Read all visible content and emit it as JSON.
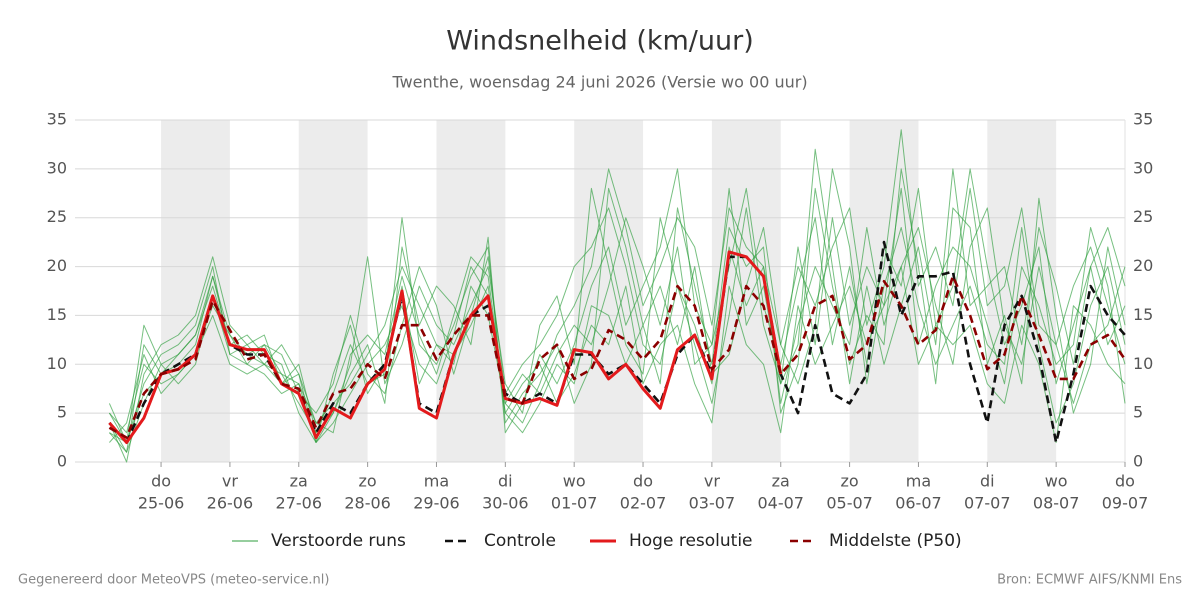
{
  "chart_data": {
    "type": "line",
    "title": "Windsnelheid (km/uur)",
    "subtitle": "Twenthe, woensdag 24 juni 2026 (Versie wo 00 uur)",
    "footer_left": "Gegenereerd door MeteoVPS (meteo-service.nl)",
    "footer_right": "Bron: ECMWF AIFS/KNMI Ens",
    "ylim": [
      0,
      35
    ],
    "yticks": [
      0,
      5,
      10,
      15,
      20,
      25,
      30,
      35
    ],
    "grid": true,
    "right_axis": true,
    "xlim": [
      "2026-06-23T18:00",
      "2026-07-09T00:00"
    ],
    "shade_alternate_days": true,
    "xticks": [
      {
        "value": "2026-06-25T00:00",
        "day": "do",
        "date": "25-06"
      },
      {
        "value": "2026-06-26T00:00",
        "day": "vr",
        "date": "26-06"
      },
      {
        "value": "2026-06-27T00:00",
        "day": "za",
        "date": "27-06"
      },
      {
        "value": "2026-06-28T00:00",
        "day": "zo",
        "date": "28-06"
      },
      {
        "value": "2026-06-29T00:00",
        "day": "ma",
        "date": "29-06"
      },
      {
        "value": "2026-06-30T00:00",
        "day": "di",
        "date": "30-06"
      },
      {
        "value": "2026-07-01T00:00",
        "day": "wo",
        "date": "01-07"
      },
      {
        "value": "2026-07-02T00:00",
        "day": "do",
        "date": "02-07"
      },
      {
        "value": "2026-07-03T00:00",
        "day": "vr",
        "date": "03-07"
      },
      {
        "value": "2026-07-04T00:00",
        "day": "za",
        "date": "04-07"
      },
      {
        "value": "2026-07-05T00:00",
        "day": "zo",
        "date": "05-07"
      },
      {
        "value": "2026-07-06T00:00",
        "day": "ma",
        "date": "06-07"
      },
      {
        "value": "2026-07-07T00:00",
        "day": "di",
        "date": "07-07"
      },
      {
        "value": "2026-07-08T00:00",
        "day": "wo",
        "date": "08-07"
      },
      {
        "value": "2026-07-09T00:00",
        "day": "do",
        "date": "09-07"
      }
    ],
    "x": [
      "2026-06-24T06:00",
      "2026-06-24T12:00",
      "2026-06-24T18:00",
      "2026-06-25T00:00",
      "2026-06-25T06:00",
      "2026-06-25T12:00",
      "2026-06-25T18:00",
      "2026-06-26T00:00",
      "2026-06-26T06:00",
      "2026-06-26T12:00",
      "2026-06-26T18:00",
      "2026-06-27T00:00",
      "2026-06-27T06:00",
      "2026-06-27T12:00",
      "2026-06-27T18:00",
      "2026-06-28T00:00",
      "2026-06-28T06:00",
      "2026-06-28T12:00",
      "2026-06-28T18:00",
      "2026-06-29T00:00",
      "2026-06-29T06:00",
      "2026-06-29T12:00",
      "2026-06-29T18:00",
      "2026-06-30T00:00",
      "2026-06-30T06:00",
      "2026-06-30T12:00",
      "2026-06-30T18:00",
      "2026-07-01T00:00",
      "2026-07-01T06:00",
      "2026-07-01T12:00",
      "2026-07-01T18:00",
      "2026-07-02T00:00",
      "2026-07-02T06:00",
      "2026-07-02T12:00",
      "2026-07-02T18:00",
      "2026-07-03T00:00",
      "2026-07-03T06:00",
      "2026-07-03T12:00",
      "2026-07-03T18:00",
      "2026-07-04T00:00",
      "2026-07-04T06:00",
      "2026-07-04T12:00",
      "2026-07-04T18:00",
      "2026-07-05T00:00",
      "2026-07-05T06:00",
      "2026-07-05T12:00",
      "2026-07-05T18:00",
      "2026-07-06T00:00",
      "2026-07-06T06:00",
      "2026-07-06T12:00",
      "2026-07-06T18:00",
      "2026-07-07T00:00",
      "2026-07-07T06:00",
      "2026-07-07T12:00",
      "2026-07-07T18:00",
      "2026-07-08T00:00",
      "2026-07-08T06:00",
      "2026-07-08T12:00",
      "2026-07-08T18:00",
      "2026-07-09T00:00"
    ],
    "series": [
      {
        "name": "Verstoorde runs",
        "color": "#2e9e3e",
        "style": "thin",
        "runs": [
          [
            4,
            1,
            12,
            9,
            10,
            12,
            19,
            12,
            11,
            12,
            9,
            6,
            3,
            7,
            12,
            8,
            9,
            25,
            12,
            10,
            14,
            19,
            22,
            4,
            7,
            9,
            12,
            6,
            10,
            28,
            22,
            14,
            8,
            26,
            18,
            10,
            24,
            20,
            22,
            5,
            10,
            28,
            18,
            10,
            15,
            12,
            30,
            20,
            8,
            26,
            24,
            10,
            15,
            8,
            27,
            15,
            5,
            10,
            22,
            14
          ],
          [
            3,
            2,
            8,
            11,
            12,
            14,
            20,
            11,
            12,
            10,
            8,
            9,
            2,
            5,
            10,
            21,
            8,
            12,
            18,
            14,
            12,
            16,
            20,
            8,
            5,
            14,
            17,
            10,
            28,
            20,
            12,
            9,
            25,
            18,
            12,
            6,
            15,
            26,
            14,
            8,
            22,
            12,
            25,
            14,
            20,
            16,
            28,
            12,
            18,
            22,
            20,
            14,
            8,
            20,
            16,
            10,
            12,
            24,
            18,
            6
          ],
          [
            5,
            3,
            10,
            8,
            9,
            11,
            16,
            13,
            10,
            9,
            7,
            8,
            4,
            6,
            8,
            11,
            14,
            20,
            16,
            12,
            10,
            18,
            15,
            6,
            9,
            7,
            11,
            14,
            12,
            18,
            25,
            20,
            14,
            22,
            10,
            12,
            20,
            28,
            16,
            10,
            18,
            25,
            12,
            20,
            10,
            22,
            18,
            28,
            14,
            18,
            30,
            20,
            12,
            16,
            22,
            8,
            14,
            20,
            12,
            16
          ],
          [
            3,
            1,
            6,
            10,
            11,
            13,
            18,
            12,
            13,
            11,
            10,
            5,
            2,
            4,
            7,
            10,
            12,
            16,
            10,
            8,
            13,
            20,
            17,
            5,
            3,
            6,
            10,
            8,
            16,
            15,
            10,
            14,
            18,
            12,
            20,
            9,
            11,
            18,
            24,
            12,
            8,
            14,
            30,
            22,
            8,
            18,
            24,
            16,
            10,
            14,
            18,
            12,
            10,
            24,
            12,
            4,
            8,
            16,
            20,
            12
          ],
          [
            6,
            2,
            14,
            10,
            8,
            10,
            17,
            11,
            10,
            12,
            11,
            7,
            5,
            8,
            15,
            9,
            7,
            14,
            20,
            16,
            9,
            15,
            21,
            7,
            10,
            12,
            15,
            20,
            22,
            26,
            20,
            12,
            10,
            18,
            14,
            8,
            22,
            16,
            20,
            6,
            14,
            20,
            16,
            12,
            24,
            14,
            20,
            24,
            16,
            10,
            22,
            26,
            14,
            10,
            20,
            12,
            6,
            12,
            14,
            20
          ],
          [
            4,
            0,
            9,
            12,
            13,
            15,
            21,
            14,
            12,
            13,
            8,
            10,
            3,
            5,
            9,
            12,
            6,
            22,
            14,
            18,
            16,
            12,
            23,
            3,
            6,
            11,
            8,
            12,
            18,
            22,
            14,
            18,
            22,
            30,
            16,
            12,
            28,
            14,
            18,
            8,
            12,
            32,
            20,
            8,
            18,
            10,
            16,
            22,
            12,
            30,
            16,
            18,
            20,
            12,
            24,
            18,
            10,
            20,
            24,
            18
          ],
          [
            2,
            4,
            11,
            7,
            9,
            11,
            15,
            10,
            9,
            10,
            9,
            8,
            2,
            9,
            14,
            7,
            10,
            18,
            8,
            12,
            11,
            14,
            18,
            5,
            8,
            10,
            6,
            9,
            14,
            12,
            18,
            8,
            12,
            14,
            8,
            4,
            18,
            12,
            10,
            3,
            16,
            10,
            14,
            18,
            12,
            16,
            20,
            10,
            14,
            12,
            14,
            8,
            6,
            14,
            10,
            2,
            16,
            14,
            10,
            8
          ],
          [
            5,
            2,
            7,
            9,
            11,
            13,
            19,
            13,
            11,
            10,
            12,
            9,
            4,
            3,
            11,
            13,
            11,
            19,
            13,
            9,
            15,
            21,
            19,
            6,
            4,
            8,
            13,
            16,
            20,
            30,
            24,
            16,
            20,
            25,
            22,
            14,
            26,
            22,
            20,
            12,
            20,
            16,
            22,
            26,
            14,
            20,
            34,
            18,
            22,
            16,
            28,
            16,
            18,
            26,
            14,
            12,
            18,
            22,
            16,
            10
          ]
        ]
      },
      {
        "name": "Controle",
        "color": "#111111",
        "style": "dashed",
        "values": [
          4,
          2,
          6,
          9,
          10,
          11,
          17,
          12,
          11,
          11,
          8,
          7,
          3,
          6,
          5,
          8,
          10,
          17,
          6,
          5,
          11,
          15,
          16,
          7,
          6,
          7,
          6,
          11,
          11,
          9,
          10,
          8,
          6,
          11,
          13,
          9,
          21,
          21,
          19,
          9,
          5,
          14,
          7,
          6,
          9,
          22.5,
          15,
          19,
          19,
          19.5,
          10,
          4,
          14,
          17,
          11,
          2,
          9,
          18,
          15,
          13
        ]
      },
      {
        "name": "Hoge resolutie",
        "color": "#e31a1c",
        "style": "thick",
        "values": [
          4,
          2,
          4.5,
          9,
          9.5,
          11,
          17,
          12,
          11.5,
          11.5,
          8,
          7,
          2.5,
          5.5,
          4.5,
          8,
          9.5,
          17.5,
          5.5,
          4.5,
          11,
          15,
          17,
          6.5,
          6,
          6.5,
          5.8,
          11.5,
          11.2,
          8.5,
          10,
          7.5,
          5.5,
          11.5,
          13,
          8.5,
          21.5,
          21,
          19,
          9,
          null,
          null,
          null,
          null,
          null,
          null,
          null,
          null,
          null,
          null,
          null,
          null,
          null,
          null,
          null,
          null,
          null,
          null,
          null,
          null
        ]
      },
      {
        "name": "Middelste (P50)",
        "color": "#8b0000",
        "style": "dashed",
        "values": [
          3.5,
          2.5,
          7,
          9,
          9.5,
          10.5,
          16.5,
          13.5,
          10.5,
          11,
          8,
          7.5,
          3.5,
          7,
          7.5,
          10,
          8.5,
          14,
          14,
          10.5,
          13,
          15,
          15,
          6.5,
          6,
          10.5,
          12,
          8.5,
          9.5,
          13.5,
          12.5,
          10.5,
          12.5,
          18,
          16,
          9.5,
          11.5,
          18,
          16,
          9,
          11,
          16,
          17,
          10.5,
          12,
          18.5,
          16,
          12,
          13.5,
          19,
          15,
          9.5,
          11,
          17,
          13,
          8.5,
          8.5,
          12,
          13,
          10.5
        ]
      }
    ]
  }
}
